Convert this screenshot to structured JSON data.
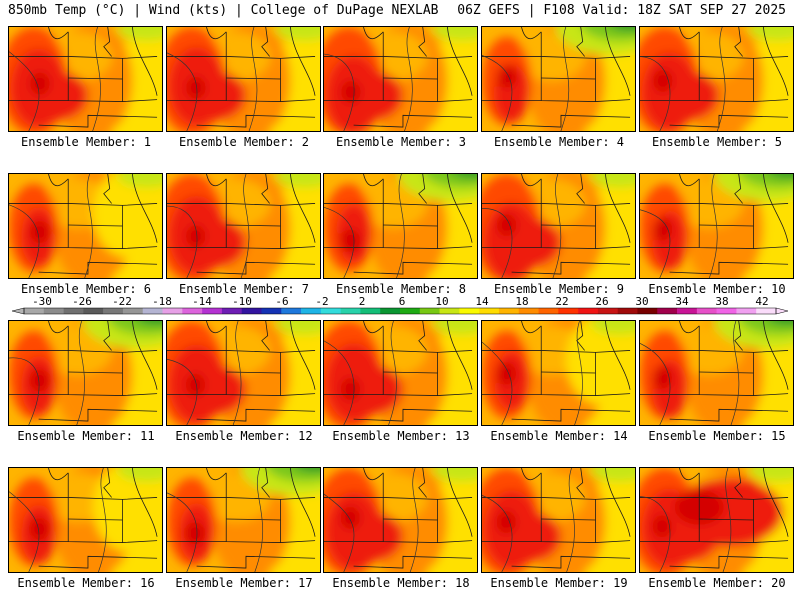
{
  "header": {
    "left": "850mb Temp (°C) | Wind (kts) | College of DuPage NEXLAB",
    "right": "06Z GEFS | F108 Valid: 18Z SAT SEP 27 2025"
  },
  "members": [
    {
      "label": "Ensemble Member: 1",
      "profile": "hot-west"
    },
    {
      "label": "Ensemble Member: 2",
      "profile": "hot-west"
    },
    {
      "label": "Ensemble Member: 3",
      "profile": "hot-west"
    },
    {
      "label": "Ensemble Member: 4",
      "profile": "cool-north"
    },
    {
      "label": "Ensemble Member: 5",
      "profile": "hot-west"
    },
    {
      "label": "Ensemble Member: 6",
      "profile": "mild"
    },
    {
      "label": "Ensemble Member: 7",
      "profile": "hot-west"
    },
    {
      "label": "Ensemble Member: 8",
      "profile": "cool-north"
    },
    {
      "label": "Ensemble Member: 9",
      "profile": "hot-west"
    },
    {
      "label": "Ensemble Member: 10",
      "profile": "cool-north"
    },
    {
      "label": "Ensemble Member: 11",
      "profile": "cool-north"
    },
    {
      "label": "Ensemble Member: 12",
      "profile": "hot-west"
    },
    {
      "label": "Ensemble Member: 13",
      "profile": "hot-west"
    },
    {
      "label": "Ensemble Member: 14",
      "profile": "mild"
    },
    {
      "label": "Ensemble Member: 15",
      "profile": "cool-north"
    },
    {
      "label": "Ensemble Member: 16",
      "profile": "mild"
    },
    {
      "label": "Ensemble Member: 17",
      "profile": "cool-north"
    },
    {
      "label": "Ensemble Member: 18",
      "profile": "hot-west"
    },
    {
      "label": "Ensemble Member: 19",
      "profile": "hot-west"
    },
    {
      "label": "Ensemble Member: 20",
      "profile": "hot-all"
    }
  ],
  "colorbar": {
    "labels": [
      "-30",
      "-26",
      "-22",
      "-18",
      "-14",
      "-10",
      "-6",
      "-2",
      "2",
      "6",
      "10",
      "14",
      "18",
      "22",
      "26",
      "30",
      "34",
      "38",
      "42"
    ],
    "colors": [
      "#a8a8a8",
      "#8c8c8c",
      "#707070",
      "#5a5a5a",
      "#787878",
      "#969696",
      "#b4b4d2",
      "#e6a0e6",
      "#dc64dc",
      "#b432d2",
      "#6e1eb4",
      "#3214a0",
      "#1432b4",
      "#1e78dc",
      "#1eb4e6",
      "#32dcdc",
      "#28d2aa",
      "#14be78",
      "#0a9632",
      "#1eaa14",
      "#78c814",
      "#c8e614",
      "#fafa00",
      "#ffdc00",
      "#ffb400",
      "#ff8c00",
      "#ff6400",
      "#ff3200",
      "#f01414",
      "#c81414",
      "#a00a0a",
      "#780000",
      "#a0004b",
      "#c81496",
      "#e650c8",
      "#f064e6",
      "#f0a0f0",
      "#fadcfa"
    ]
  },
  "palette": {
    "dark_red": "#d40000",
    "red": "#ee1c10",
    "red_orange": "#ff4a00",
    "orange": "#ff8c00",
    "amber": "#ffb400",
    "yellow": "#ffe000",
    "lime": "#c8e614",
    "green": "#7cc81e",
    "dark_green": "#2e9a28",
    "border": "#000000",
    "state_line": "#1a1a1a"
  }
}
